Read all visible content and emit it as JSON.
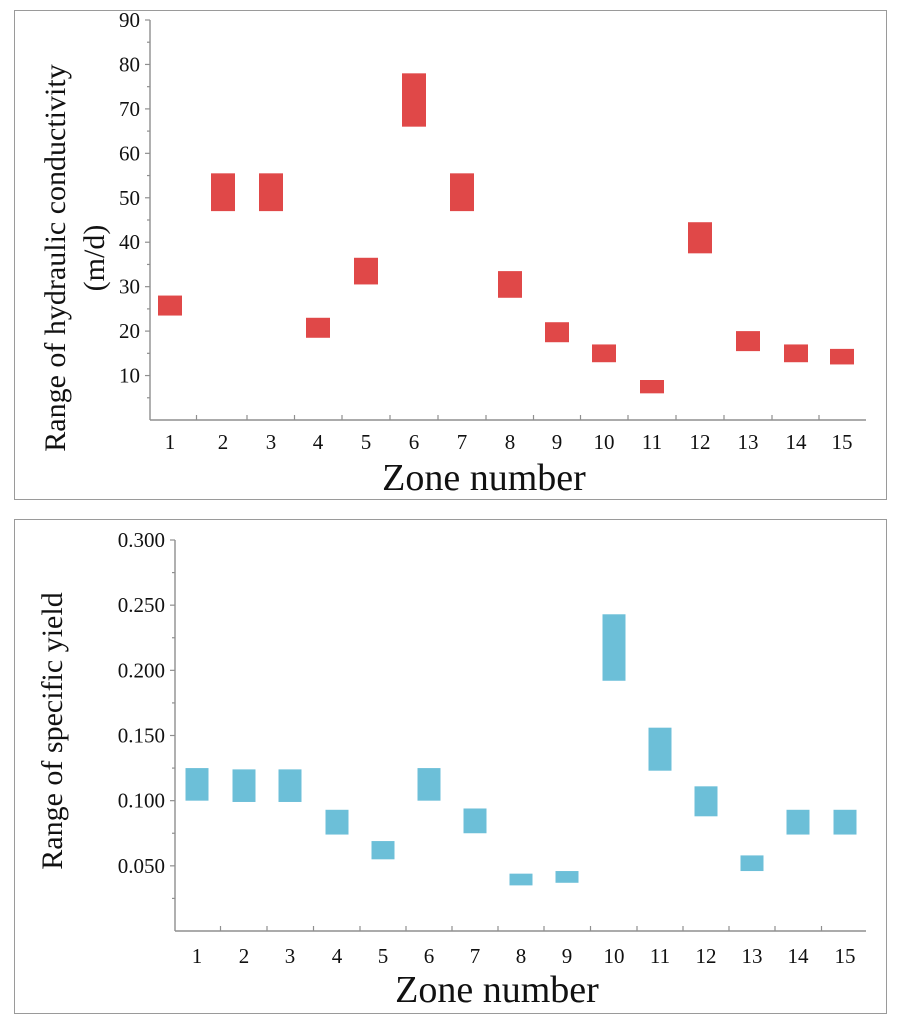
{
  "chart_data": [
    {
      "type": "floating-bar",
      "title": "",
      "xlabel": "Zone number",
      "ylabel": [
        "Range of hydraulic conductivity",
        "(m/d)"
      ],
      "categories": [
        "1",
        "2",
        "3",
        "4",
        "5",
        "6",
        "7",
        "8",
        "9",
        "10",
        "11",
        "12",
        "13",
        "14",
        "15"
      ],
      "yticks": [
        "10",
        "20",
        "30",
        "40",
        "50",
        "60",
        "70",
        "80",
        "90"
      ],
      "ylim": [
        0,
        90
      ],
      "color": "#e04848",
      "ranges": [
        {
          "zone": "1",
          "low": 23.5,
          "high": 28
        },
        {
          "zone": "2",
          "low": 47,
          "high": 55.5
        },
        {
          "zone": "3",
          "low": 47,
          "high": 55.5
        },
        {
          "zone": "4",
          "low": 18.5,
          "high": 23
        },
        {
          "zone": "5",
          "low": 30.5,
          "high": 36.5
        },
        {
          "zone": "6",
          "low": 66,
          "high": 78
        },
        {
          "zone": "7",
          "low": 47,
          "high": 55.5
        },
        {
          "zone": "8",
          "low": 27.5,
          "high": 33.5
        },
        {
          "zone": "9",
          "low": 17.5,
          "high": 22
        },
        {
          "zone": "10",
          "low": 13,
          "high": 17
        },
        {
          "zone": "11",
          "low": 6,
          "high": 9
        },
        {
          "zone": "12",
          "low": 37.5,
          "high": 44.5
        },
        {
          "zone": "13",
          "low": 15.5,
          "high": 20
        },
        {
          "zone": "14",
          "low": 13,
          "high": 17
        },
        {
          "zone": "15",
          "low": 12.5,
          "high": 16
        }
      ]
    },
    {
      "type": "floating-bar",
      "title": "",
      "xlabel": "Zone number",
      "ylabel": [
        "Range of specific yield"
      ],
      "categories": [
        "1",
        "2",
        "3",
        "4",
        "5",
        "6",
        "7",
        "8",
        "9",
        "10",
        "11",
        "12",
        "13",
        "14",
        "15"
      ],
      "yticks": [
        "0.050",
        "0.100",
        "0.150",
        "0.200",
        "0.250",
        "0.300"
      ],
      "ylim": [
        0,
        0.3
      ],
      "color": "#6cbfd8",
      "ranges": [
        {
          "zone": "1",
          "low": 0.1,
          "high": 0.125
        },
        {
          "zone": "2",
          "low": 0.099,
          "high": 0.124
        },
        {
          "zone": "3",
          "low": 0.099,
          "high": 0.124
        },
        {
          "zone": "4",
          "low": 0.074,
          "high": 0.093
        },
        {
          "zone": "5",
          "low": 0.055,
          "high": 0.069
        },
        {
          "zone": "6",
          "low": 0.1,
          "high": 0.125
        },
        {
          "zone": "7",
          "low": 0.075,
          "high": 0.094
        },
        {
          "zone": "8",
          "low": 0.035,
          "high": 0.044
        },
        {
          "zone": "9",
          "low": 0.037,
          "high": 0.046
        },
        {
          "zone": "10",
          "low": 0.192,
          "high": 0.243
        },
        {
          "zone": "11",
          "low": 0.123,
          "high": 0.156
        },
        {
          "zone": "12",
          "low": 0.088,
          "high": 0.111
        },
        {
          "zone": "13",
          "low": 0.046,
          "high": 0.058
        },
        {
          "zone": "14",
          "low": 0.074,
          "high": 0.093
        },
        {
          "zone": "15",
          "low": 0.074,
          "high": 0.093
        }
      ]
    }
  ]
}
